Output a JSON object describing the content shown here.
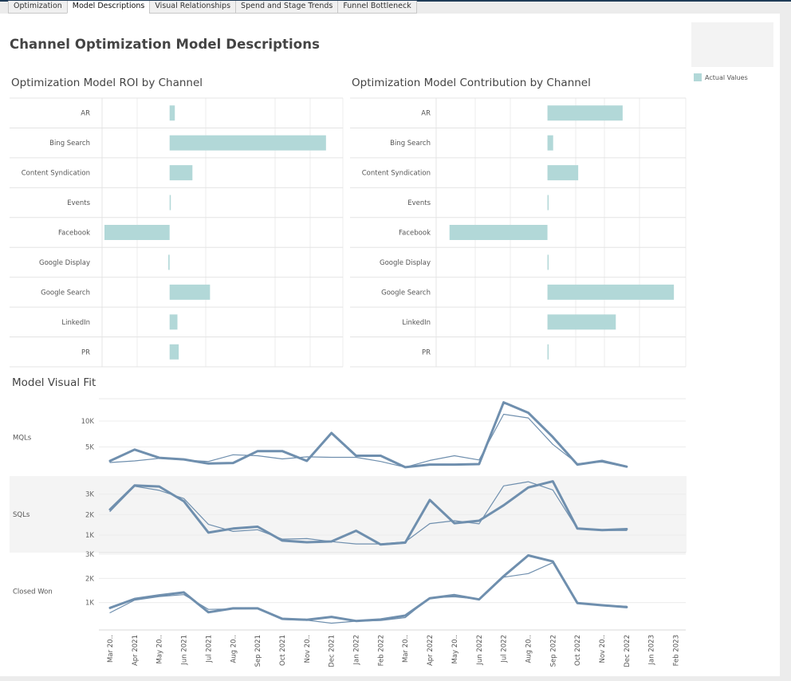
{
  "tabs": [
    {
      "label": "Optimization",
      "active": false
    },
    {
      "label": "Model Descriptions",
      "active": true
    },
    {
      "label": "Visual Relationships",
      "active": false
    },
    {
      "label": "Spend and Stage Trends",
      "active": false
    },
    {
      "label": "Funnel Bottleneck",
      "active": false
    }
  ],
  "page": {
    "title": "Channel Optimization Model Descriptions"
  },
  "legend": {
    "label": "Actual Values",
    "color": "#b2d8d8"
  },
  "colors": {
    "bar": "#b2d8d8",
    "line": "#6f8fae",
    "band": "#f4f4f4",
    "grid": "#ececec"
  },
  "chart_data": [
    {
      "type": "bar",
      "orientation": "horizontal",
      "title": "Optimization Model ROI by Channel",
      "categories": [
        "AR",
        "Bing Search",
        "Content Syndication",
        "Events",
        "Facebook",
        "Google Display",
        "Google Search",
        "LinkedIn",
        "PR"
      ],
      "values": [
        0.08,
        2.4,
        0.35,
        0.0,
        -1.0,
        -0.02,
        0.62,
        0.12,
        0.14
      ],
      "xlim": [
        -1.0,
        2.5
      ]
    },
    {
      "type": "bar",
      "orientation": "horizontal",
      "title": "Optimization Model Contribution by Channel",
      "categories": [
        "AR",
        "Bing Search",
        "Content Syndication",
        "Events",
        "Facebook",
        "Google Display",
        "Google Search",
        "LinkedIn",
        "PR"
      ],
      "values": [
        0.33,
        0.025,
        0.135,
        0.004,
        -0.43,
        0.003,
        0.555,
        0.3,
        0.003
      ],
      "xlim": [
        -0.45,
        0.6
      ]
    },
    {
      "type": "line",
      "title": "Model Visual Fit",
      "x": [
        "Mar 20..",
        "Apr 2021",
        "May 20..",
        "Jun 2021",
        "Jul 2021",
        "Aug 20..",
        "Sep 2021",
        "Oct 2021",
        "Nov 20..",
        "Dec 2021",
        "Jan 2022",
        "Feb 2022",
        "Mar 20..",
        "Apr 2022",
        "May 20..",
        "Jun 2022",
        "Jul 2022",
        "Aug 20..",
        "Sep 2022",
        "Oct 2022",
        "Nov 20..",
        "Dec 2022",
        "Jan 2023",
        "Feb 2023"
      ],
      "panels": [
        {
          "label": "MQLs",
          "ticks": [
            "5K",
            "10K"
          ],
          "tick_values": [
            5000,
            10000
          ],
          "ylim": [
            0,
            14000
          ],
          "series": [
            {
              "values": [
                2300,
                4500,
                2900,
                2600,
                1800,
                1900,
                4200,
                4200,
                2300,
                7700,
                3300,
                3300,
                1100,
                1600,
                1600,
                1700,
                13600,
                11600,
                6900,
                1600,
                2300,
                1200,
                null,
                null
              ]
            },
            {
              "values": [
                2000,
                2300,
                2800,
                2500,
                2200,
                3500,
                3300,
                2700,
                3100,
                3000,
                3000,
                2200,
                1100,
                2400,
                3300,
                2500,
                11300,
                10600,
                5500,
                1800,
                2100,
                1100,
                null,
                null
              ]
            }
          ]
        },
        {
          "label": "SQLs",
          "ticks": [
            "1K",
            "2K",
            "3K"
          ],
          "tick_values": [
            1000,
            2000,
            3000
          ],
          "ylim": [
            300,
            3800
          ],
          "series": [
            {
              "values": [
                2250,
                3420,
                3370,
                2650,
                1120,
                1320,
                1410,
                730,
                650,
                690,
                1210,
                540,
                630,
                2710,
                1580,
                1700,
                2450,
                3320,
                3620,
                1320,
                1240,
                1290,
                null,
                null
              ]
            },
            {
              "values": [
                2150,
                3380,
                3180,
                2780,
                1520,
                1180,
                1260,
                800,
                830,
                680,
                570,
                570,
                670,
                1560,
                1700,
                1550,
                3400,
                3600,
                3200,
                1300,
                1220,
                1220,
                null,
                null
              ]
            }
          ]
        },
        {
          "label": "Closed Won",
          "ticks": [
            "1K",
            "2K",
            "3K"
          ],
          "tick_values": [
            1000,
            2000,
            3000
          ],
          "ylim": [
            0,
            3000
          ],
          "series": [
            {
              "values": [
                780,
                1150,
                1300,
                1420,
                600,
                760,
                760,
                330,
                290,
                410,
                240,
                300,
                460,
                1180,
                1310,
                1130,
                2090,
                2950,
                2700,
                980,
                890,
                810,
                null,
                null
              ]
            },
            {
              "values": [
                580,
                1100,
                1250,
                1330,
                720,
                740,
                750,
                300,
                270,
                150,
                230,
                260,
                380,
                1200,
                1240,
                1140,
                2050,
                2200,
                2650,
                970,
                890,
                850,
                null,
                null
              ]
            }
          ]
        }
      ]
    }
  ]
}
